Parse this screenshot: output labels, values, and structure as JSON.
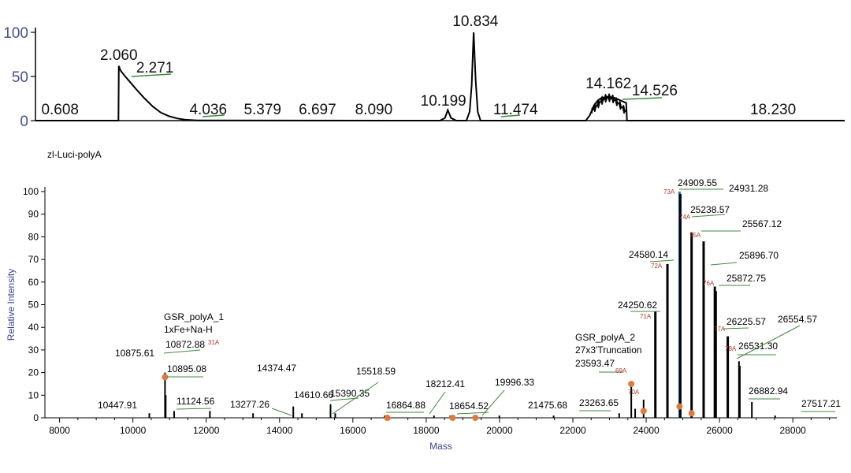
{
  "chart_data": [
    {
      "type": "line",
      "title": "",
      "xlabel": "",
      "ylabel": "",
      "ylim": [
        0,
        100
      ],
      "yticks": [
        0,
        50,
        100
      ],
      "xlim": [
        0,
        20
      ],
      "color": "#000000",
      "tick_color": "#4a4f8f",
      "peaks": [
        {
          "label": "0.608",
          "x": 0.608,
          "y": 3
        },
        {
          "label": "2.060",
          "x": 2.06,
          "y": 62
        },
        {
          "label": "2.271",
          "x": 2.271,
          "y": 50
        },
        {
          "label": "4.036",
          "x": 4.036,
          "y": 2
        },
        {
          "label": "5.379",
          "x": 5.379,
          "y": 2
        },
        {
          "label": "6.697",
          "x": 6.697,
          "y": 1
        },
        {
          "label": "8.090",
          "x": 8.09,
          "y": 1
        },
        {
          "label": "10.199",
          "x": 10.199,
          "y": 12
        },
        {
          "label": "10.834",
          "x": 10.834,
          "y": 100
        },
        {
          "label": "11.474",
          "x": 11.474,
          "y": 2
        },
        {
          "label": "14.162",
          "x": 14.162,
          "y": 27
        },
        {
          "label": "14.526",
          "x": 14.526,
          "y": 25
        },
        {
          "label": "18.230",
          "x": 18.23,
          "y": 0
        }
      ],
      "trace": [
        [
          0,
          0
        ],
        [
          2.05,
          0
        ],
        [
          2.06,
          62
        ],
        [
          2.1,
          57
        ],
        [
          2.2,
          51
        ],
        [
          2.35,
          43
        ],
        [
          2.5,
          35
        ],
        [
          2.7,
          25
        ],
        [
          2.9,
          16
        ],
        [
          3.1,
          9
        ],
        [
          3.3,
          5
        ],
        [
          3.5,
          2.5
        ],
        [
          3.7,
          1
        ],
        [
          4.0,
          0.3
        ],
        [
          10.0,
          0
        ],
        [
          10.12,
          3
        ],
        [
          10.19,
          12
        ],
        [
          10.27,
          3
        ],
        [
          10.4,
          0
        ],
        [
          10.65,
          0
        ],
        [
          10.73,
          10
        ],
        [
          10.78,
          40
        ],
        [
          10.83,
          100
        ],
        [
          10.88,
          45
        ],
        [
          10.93,
          10
        ],
        [
          11.0,
          0
        ],
        [
          13.6,
          0
        ],
        [
          13.7,
          6
        ],
        [
          13.8,
          17
        ],
        [
          13.9,
          23
        ],
        [
          14.0,
          26
        ],
        [
          14.16,
          27
        ],
        [
          14.3,
          26
        ],
        [
          14.45,
          23
        ],
        [
          14.6,
          20
        ],
        [
          14.62,
          0
        ],
        [
          20,
          0
        ]
      ]
    },
    {
      "type": "bar",
      "title": "zl-Luci-polyA",
      "xlabel": "Mass",
      "ylabel": "Relative Intensity",
      "xlim": [
        7600,
        29200
      ],
      "ylim": [
        0,
        100
      ],
      "xticks": [
        8000,
        10000,
        12000,
        14000,
        16000,
        18000,
        20000,
        22000,
        24000,
        26000,
        28000
      ],
      "yticks": [
        0,
        10,
        20,
        30,
        40,
        50,
        60,
        70,
        80,
        90,
        100
      ],
      "bar_color": "#000000",
      "highlight_color": "#2a78b8",
      "marker_color": "#e07a3c",
      "label_color": "#b13a2a",
      "leader_color": "#3f8a3f",
      "peaks": [
        {
          "x": 10447.91,
          "y": 2
        },
        {
          "x": 10875.61,
          "y": 20
        },
        {
          "x": 10895.08,
          "y": 10
        },
        {
          "x": 11124.56,
          "y": 3
        },
        {
          "x": 12100,
          "y": 3
        },
        {
          "x": 13277.26,
          "y": 2
        },
        {
          "x": 14374.47,
          "y": 5
        },
        {
          "x": 14610.66,
          "y": 2
        },
        {
          "x": 15390.35,
          "y": 6
        },
        {
          "x": 15518.59,
          "y": 2
        },
        {
          "x": 16864.88,
          "y": 1
        },
        {
          "x": 18212.41,
          "y": 1
        },
        {
          "x": 18654.52,
          "y": 1
        },
        {
          "x": 19996.33,
          "y": 1
        },
        {
          "x": 21475.68,
          "y": 1
        },
        {
          "x": 23263.65,
          "y": 2
        },
        {
          "x": 23593.47,
          "y": 15
        },
        {
          "x": 23700,
          "y": 4
        },
        {
          "x": 23930,
          "y": 8
        },
        {
          "x": 24250.62,
          "y": 47
        },
        {
          "x": 24580.14,
          "y": 68
        },
        {
          "x": 24909.55,
          "y": 100
        },
        {
          "x": 24931.28,
          "y": 99
        },
        {
          "x": 25238.57,
          "y": 82
        },
        {
          "x": 25567.12,
          "y": 78
        },
        {
          "x": 25872.75,
          "y": 58
        },
        {
          "x": 25896.7,
          "y": 56
        },
        {
          "x": 26225.57,
          "y": 36
        },
        {
          "x": 26531.3,
          "y": 25
        },
        {
          "x": 26554.57,
          "y": 23
        },
        {
          "x": 26882.94,
          "y": 7
        },
        {
          "x": 27517.21,
          "y": 1
        }
      ],
      "markers": [
        {
          "x": 10875.61,
          "y": 18
        },
        {
          "x": 16940,
          "y": 0
        },
        {
          "x": 18720,
          "y": 0
        },
        {
          "x": 19340,
          "y": 0
        },
        {
          "x": 23593.47,
          "y": 15
        },
        {
          "x": 23930,
          "y": 3
        },
        {
          "x": 24909.55,
          "y": 5
        },
        {
          "x": 25238.57,
          "y": 2
        }
      ],
      "peak_labels": [
        {
          "text": "10447.91",
          "x": 10447.91
        },
        {
          "text": "10875.61",
          "x": 10875.61
        },
        {
          "text": "10872.88",
          "x": 10872.88
        },
        {
          "text": "10895.08",
          "x": 10895.08
        },
        {
          "text": "11124.56",
          "x": 11124.56
        },
        {
          "text": "13277.26",
          "x": 13277.26
        },
        {
          "text": "14374.47",
          "x": 14374.47
        },
        {
          "text": "14610.66",
          "x": 14610.66
        },
        {
          "text": "15390.35",
          "x": 15390.35
        },
        {
          "text": "15518.59",
          "x": 15518.59
        },
        {
          "text": "16864.88",
          "x": 16864.88
        },
        {
          "text": "18212.41",
          "x": 18212.41
        },
        {
          "text": "18654.52",
          "x": 18654.52
        },
        {
          "text": "19996.33",
          "x": 19996.33
        },
        {
          "text": "21475.68",
          "x": 21475.68
        },
        {
          "text": "23263.65",
          "x": 23263.65
        },
        {
          "text": "23593.47",
          "x": 23593.47
        },
        {
          "text": "24250.62",
          "x": 24250.62
        },
        {
          "text": "24580.14",
          "x": 24580.14
        },
        {
          "text": "24909.55",
          "x": 24909.55
        },
        {
          "text": "24931.28",
          "x": 24931.28
        },
        {
          "text": "25238.57",
          "x": 25238.57
        },
        {
          "text": "25567.12",
          "x": 25567.12
        },
        {
          "text": "25872.75",
          "x": 25872.75
        },
        {
          "text": "25896.70",
          "x": 25896.7
        },
        {
          "text": "26225.57",
          "x": 26225.57
        },
        {
          "text": "26531.30",
          "x": 26531.3
        },
        {
          "text": "26554.57",
          "x": 26554.57
        },
        {
          "text": "26882.94",
          "x": 26882.94
        },
        {
          "text": "27517.21",
          "x": 27517.21
        }
      ],
      "small_labels": [
        {
          "text": "31A",
          "x": 10872.88
        },
        {
          "text": "69A",
          "x": 23593.47
        },
        {
          "text": "70A",
          "x": 23930
        },
        {
          "text": "71A",
          "x": 24250.62
        },
        {
          "text": "72A",
          "x": 24580.14
        },
        {
          "text": "73A",
          "x": 24909.55
        },
        {
          "text": "74A",
          "x": 25238.57
        },
        {
          "text": "75A",
          "x": 25567.12
        },
        {
          "text": "76A",
          "x": 25896.7
        },
        {
          "text": "77A",
          "x": 26225.57
        },
        {
          "text": "78A",
          "x": 26554.57
        }
      ],
      "annotations": [
        {
          "lines": [
            "GSR_polyA_1",
            "1xFe+Na-H"
          ],
          "x": 10872.88
        },
        {
          "lines": [
            "GSR_polyA_2",
            "27x3'Truncation"
          ],
          "x": 23593.47
        }
      ]
    }
  ]
}
